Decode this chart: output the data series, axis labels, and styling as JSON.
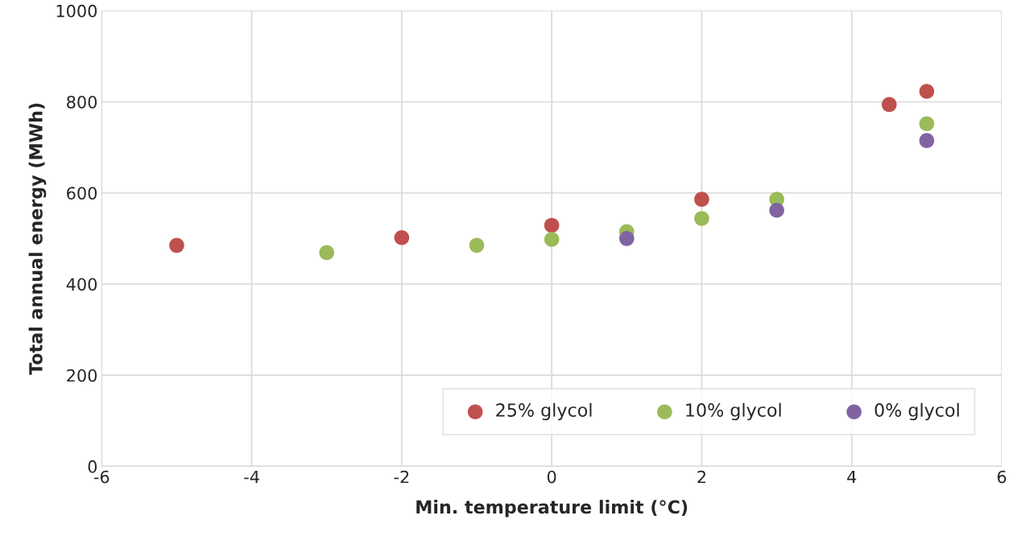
{
  "chart_data": {
    "type": "scatter",
    "xlabel": "Min. temperature limit (°C)",
    "ylabel": "Total annual energy (MWh)",
    "xlim": [
      -6,
      6
    ],
    "xticks": [
      -6,
      -4,
      -2,
      0,
      2,
      4,
      6
    ],
    "ylim": [
      0,
      1000
    ],
    "yticks": [
      0,
      200,
      400,
      600,
      800,
      1000
    ],
    "grid": true,
    "legend": "bottom right",
    "marker": "circle",
    "series": [
      {
        "name": "25% glycol",
        "color": "#c0504d",
        "x": [
          -5,
          -2,
          0,
          2,
          4.5,
          5
        ],
        "values": [
          485,
          502,
          529,
          586,
          794,
          823
        ]
      },
      {
        "name": "10% glycol",
        "color": "#9bbb59",
        "x": [
          -3,
          -1,
          0,
          1,
          2,
          3,
          5
        ],
        "values": [
          469,
          485,
          498,
          515,
          544,
          586,
          752
        ]
      },
      {
        "name": "0% glycol",
        "color": "#8064a2",
        "x": [
          1,
          3,
          5
        ],
        "values": [
          500,
          562,
          715
        ]
      }
    ]
  }
}
